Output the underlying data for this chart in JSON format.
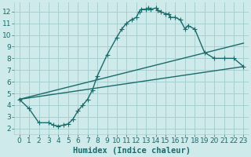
{
  "xlabel": "Humidex (Indice chaleur)",
  "bg_color": "#ceeaea",
  "grid_color": "#a8d0d0",
  "line_color": "#1a6b6b",
  "xlim": [
    -0.5,
    23.5
  ],
  "ylim": [
    1.5,
    12.8
  ],
  "xticks": [
    0,
    1,
    2,
    3,
    4,
    5,
    6,
    7,
    8,
    9,
    10,
    11,
    12,
    13,
    14,
    15,
    16,
    17,
    18,
    19,
    20,
    21,
    22,
    23
  ],
  "yticks": [
    2,
    3,
    4,
    5,
    6,
    7,
    8,
    9,
    10,
    11,
    12
  ],
  "curve_x": [
    0,
    1,
    2,
    3,
    3.5,
    4,
    4.5,
    5,
    5.5,
    6,
    6.5,
    7,
    7.5,
    8,
    9,
    10,
    10.5,
    11,
    11.5,
    12,
    12.3,
    12.5,
    13,
    13.2,
    13.5,
    14,
    14.2,
    14.5,
    15,
    15.3,
    15.5,
    16,
    16.5,
    17,
    17.3,
    18,
    19,
    20,
    21,
    22,
    23
  ],
  "curve_y": [
    4.5,
    3.7,
    2.5,
    2.5,
    2.3,
    2.2,
    2.3,
    2.4,
    2.8,
    3.5,
    4.0,
    4.5,
    5.3,
    6.5,
    8.3,
    9.8,
    10.5,
    11.0,
    11.3,
    11.5,
    12.0,
    12.2,
    12.2,
    12.3,
    12.2,
    12.3,
    12.1,
    12.0,
    11.8,
    11.8,
    11.5,
    11.5,
    11.3,
    10.5,
    10.8,
    10.5,
    8.5,
    8.0,
    8.0,
    8.0,
    7.3
  ],
  "line2_x": [
    0,
    23
  ],
  "line2_y": [
    4.5,
    9.3
  ],
  "line3_x": [
    0,
    23
  ],
  "line3_y": [
    4.5,
    7.3
  ],
  "tick_fontsize": 6.5,
  "label_fontsize": 7.5
}
